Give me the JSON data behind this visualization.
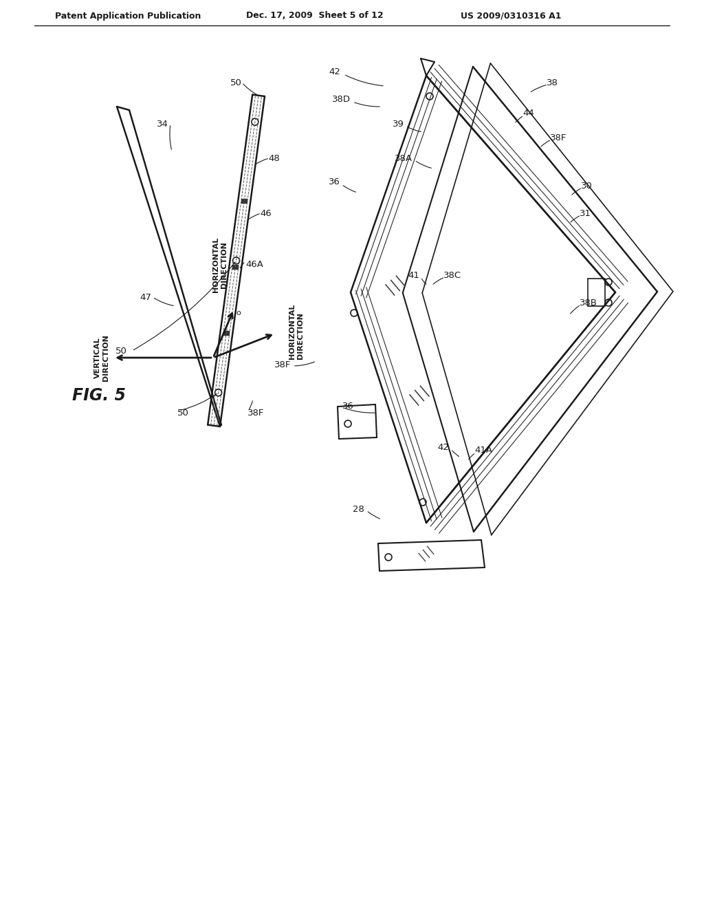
{
  "bg_color": "#ffffff",
  "header_left": "Patent Application Publication",
  "header_mid": "Dec. 17, 2009  Sheet 5 of 12",
  "header_right": "US 2009/0310316 A1",
  "fig_label": "FIG. 5",
  "line_color": "#1a1a1a"
}
